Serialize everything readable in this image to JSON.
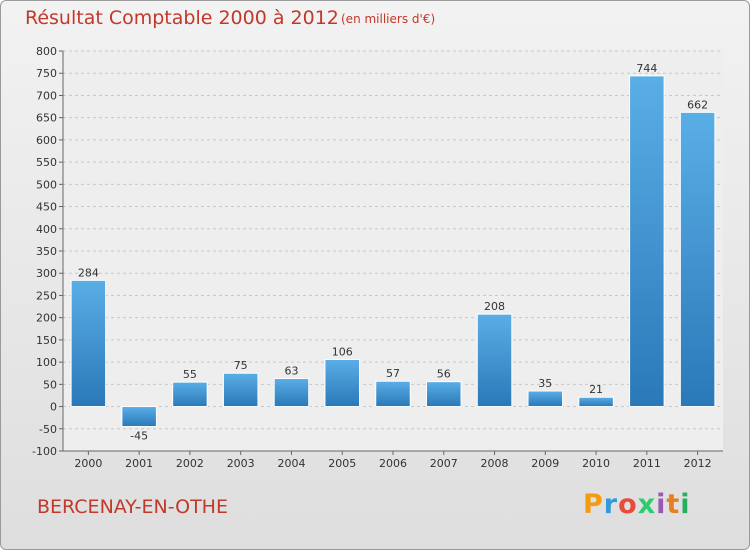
{
  "header": {
    "title": "Résultat Comptable 2000 à 2012",
    "subtitle": "(en milliers d'€)"
  },
  "footer": {
    "place": "BERCENAY-EN-OTHE",
    "logo_text": "Proxiti",
    "logo_colors": [
      "#f39c12",
      "#3498db",
      "#e74c3c",
      "#2ecc71",
      "#9b59b6",
      "#e67e22",
      "#27ae60"
    ]
  },
  "chart_data": {
    "type": "bar",
    "title": "Résultat Comptable 2000 à 2012",
    "subtitle": "(en milliers d'€)",
    "xlabel": "",
    "ylabel": "",
    "categories": [
      "2000",
      "2001",
      "2002",
      "2003",
      "2004",
      "2005",
      "2006",
      "2007",
      "2008",
      "2009",
      "2010",
      "2011",
      "2012"
    ],
    "values": [
      284,
      -45,
      55,
      75,
      63,
      106,
      57,
      56,
      208,
      35,
      21,
      744,
      662
    ],
    "ylim": [
      -100,
      800
    ],
    "yticks": [
      -100,
      -50,
      0,
      50,
      100,
      150,
      200,
      250,
      300,
      350,
      400,
      450,
      500,
      550,
      600,
      650,
      700,
      750,
      800
    ],
    "grid": "horizontal dashed",
    "bar_color": "#3a93d5",
    "legend": "none"
  }
}
